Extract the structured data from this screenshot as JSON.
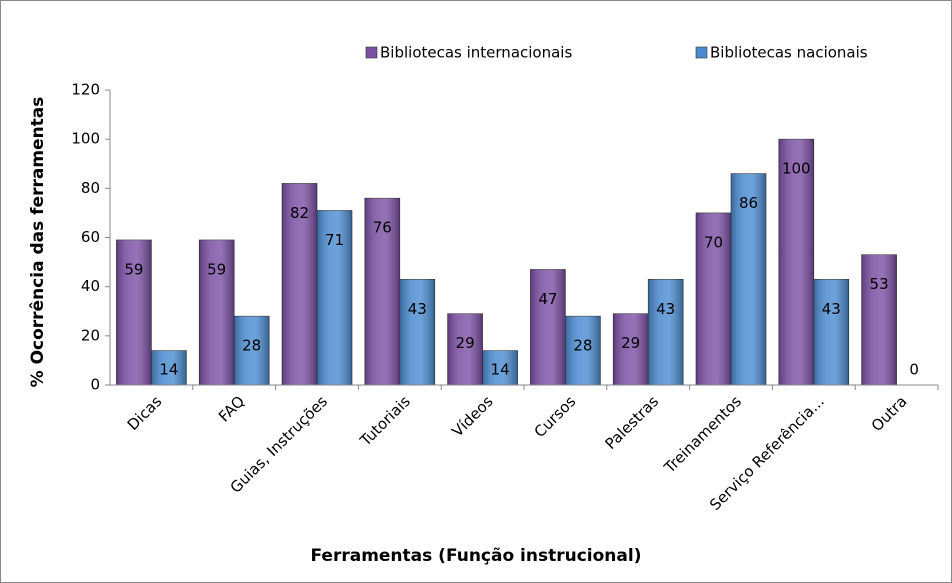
{
  "chart_data": {
    "type": "bar",
    "x_label": "Ferramentas (Função instrucional)",
    "y_label": "% Ocorrência das ferramentas",
    "categories": [
      "Dicas",
      "FAQ",
      "Guias, Instruções",
      "Tutoriais",
      "Vídeos",
      "Cursos",
      "Palestras",
      "Treinamentos",
      "Serviço Referência...",
      "Outra"
    ],
    "series": [
      {
        "name": "Bibliotecas internacionais",
        "color": "#7b4fa3",
        "values": [
          59,
          59,
          82,
          76,
          29,
          47,
          29,
          70,
          100,
          53
        ]
      },
      {
        "name": "Bibliotecas nacionais",
        "color": "#4a8bd0",
        "values": [
          14,
          28,
          71,
          43,
          14,
          28,
          43,
          86,
          43,
          0
        ]
      }
    ],
    "ylim": [
      0,
      120
    ],
    "yticks": [
      0,
      20,
      40,
      60,
      80,
      100,
      120
    ],
    "grid": false,
    "legend": "top"
  }
}
